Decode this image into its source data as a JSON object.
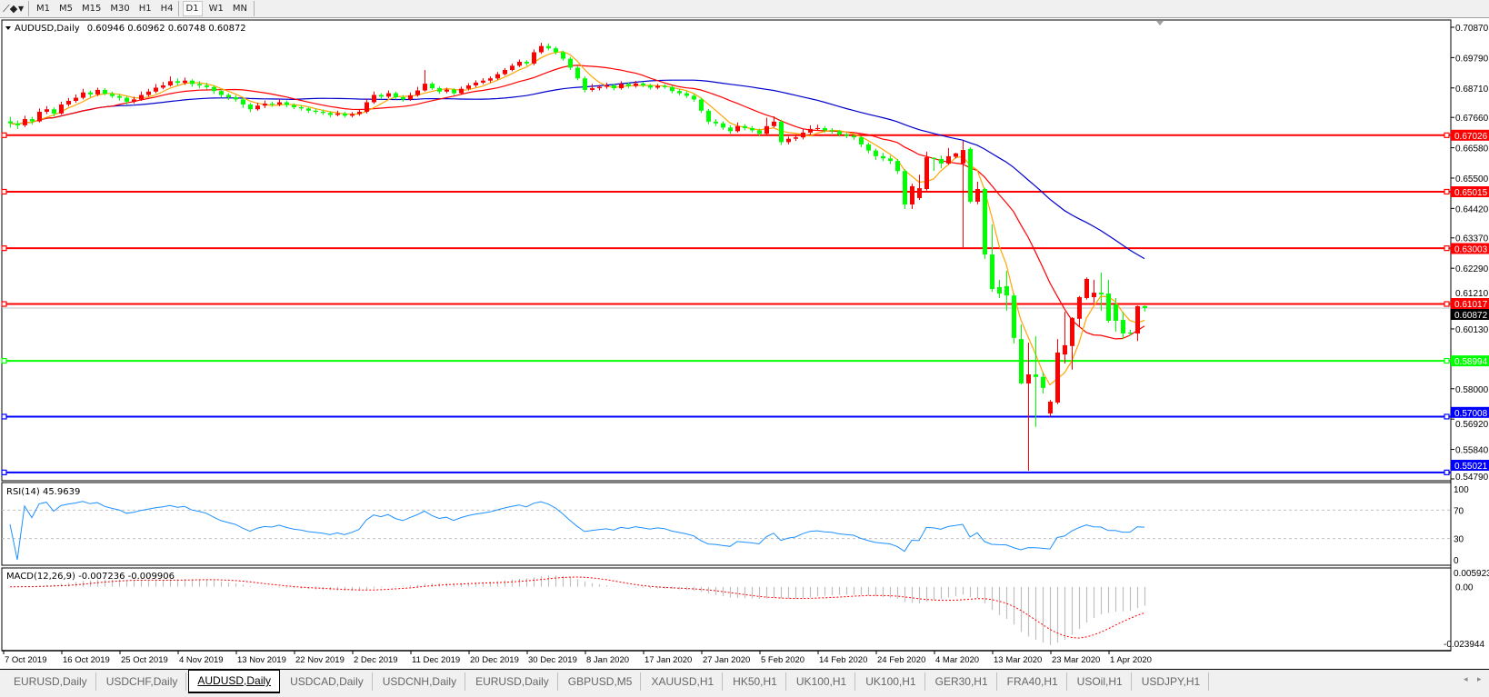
{
  "toolbar": {
    "tools_icon": "line-tools-icon",
    "timeframes": [
      "M1",
      "M5",
      "M15",
      "M30",
      "H1",
      "H4",
      "D1",
      "W1",
      "MN"
    ],
    "active_timeframe": "D1"
  },
  "chart": {
    "symbol_label": "AUDUSD,Daily",
    "ohlc_label": "0.60946 0.60962 0.60748 0.60872",
    "colors": {
      "bull": "#ff0000",
      "bear": "#00ff00",
      "ma_fast": "#ffa500",
      "ma_mid": "#ff0000",
      "ma_slow": "#0000cd",
      "rsi": "#1e90ff",
      "macd_hist": "#c0c0c0",
      "macd_signal": "#ff0000",
      "bid_line": "#c0c0c0"
    },
    "price_axis": [
      "0.70870",
      "0.69790",
      "0.68710",
      "0.67660",
      "0.66580",
      "0.65500",
      "0.64420",
      "0.63370",
      "0.62290",
      "0.61210",
      "0.60130",
      "0.58000",
      "0.56920",
      "0.55840",
      "0.54790"
    ],
    "price_range": [
      0.5479,
      0.7087
    ],
    "current_price": "0.60872",
    "hlines": [
      {
        "price": "0.67026",
        "color": "#ff0000"
      },
      {
        "price": "0.65015",
        "color": "#ff0000"
      },
      {
        "price": "0.63003",
        "color": "#ff0000"
      },
      {
        "price": "0.61017",
        "color": "#ff0000"
      },
      {
        "price": "0.58994",
        "color": "#00ff00"
      },
      {
        "price": "0.57008",
        "color": "#0000ff"
      },
      {
        "price": "0.55021",
        "color": "#0000ff"
      }
    ],
    "candles": [
      [
        0.6752,
        0.6768,
        0.673,
        0.6745
      ],
      [
        0.6745,
        0.6755,
        0.6725,
        0.6738
      ],
      [
        0.6738,
        0.6772,
        0.6732,
        0.676
      ],
      [
        0.676,
        0.6768,
        0.674,
        0.6752
      ],
      [
        0.6752,
        0.6798,
        0.6748,
        0.6786
      ],
      [
        0.6786,
        0.6806,
        0.6778,
        0.6795
      ],
      [
        0.6795,
        0.6802,
        0.677,
        0.678
      ],
      [
        0.678,
        0.6822,
        0.6775,
        0.6812
      ],
      [
        0.6812,
        0.6835,
        0.6805,
        0.6825
      ],
      [
        0.6825,
        0.6848,
        0.6818,
        0.6836
      ],
      [
        0.6836,
        0.6868,
        0.683,
        0.6855
      ],
      [
        0.6855,
        0.6862,
        0.6838,
        0.6848
      ],
      [
        0.6848,
        0.6872,
        0.6842,
        0.6864
      ],
      [
        0.6864,
        0.687,
        0.6845,
        0.685
      ],
      [
        0.685,
        0.6858,
        0.6835,
        0.6842
      ],
      [
        0.6842,
        0.685,
        0.6826,
        0.6836
      ],
      [
        0.6836,
        0.6842,
        0.6812,
        0.6822
      ],
      [
        0.6822,
        0.684,
        0.6815,
        0.683
      ],
      [
        0.683,
        0.6858,
        0.6825,
        0.6846
      ],
      [
        0.6846,
        0.6868,
        0.684,
        0.6858
      ],
      [
        0.6858,
        0.6885,
        0.6852,
        0.6872
      ],
      [
        0.6872,
        0.6892,
        0.6866,
        0.688
      ],
      [
        0.688,
        0.6912,
        0.6876,
        0.6895
      ],
      [
        0.6895,
        0.6905,
        0.688,
        0.6889
      ],
      [
        0.6889,
        0.6908,
        0.6882,
        0.6897
      ],
      [
        0.6897,
        0.6902,
        0.6875,
        0.6885
      ],
      [
        0.6885,
        0.6895,
        0.687,
        0.688
      ],
      [
        0.688,
        0.689,
        0.6866,
        0.6874
      ],
      [
        0.6874,
        0.688,
        0.685,
        0.686
      ],
      [
        0.686,
        0.6866,
        0.6838,
        0.6846
      ],
      [
        0.6846,
        0.6852,
        0.6828,
        0.6838
      ],
      [
        0.6838,
        0.6845,
        0.6822,
        0.683
      ],
      [
        0.683,
        0.6836,
        0.68,
        0.6812
      ],
      [
        0.6812,
        0.6818,
        0.6785,
        0.6795
      ],
      [
        0.6795,
        0.6818,
        0.679,
        0.6808
      ],
      [
        0.6808,
        0.6826,
        0.68,
        0.6815
      ],
      [
        0.6815,
        0.6822,
        0.6804,
        0.6812
      ],
      [
        0.6812,
        0.6832,
        0.6806,
        0.682
      ],
      [
        0.682,
        0.6826,
        0.6802,
        0.681
      ],
      [
        0.681,
        0.6816,
        0.6795,
        0.6802
      ],
      [
        0.6802,
        0.681,
        0.679,
        0.6798
      ],
      [
        0.6798,
        0.6804,
        0.6782,
        0.679
      ],
      [
        0.679,
        0.6798,
        0.6778,
        0.6786
      ],
      [
        0.6786,
        0.6794,
        0.6775,
        0.6782
      ],
      [
        0.6782,
        0.6788,
        0.6766,
        0.6775
      ],
      [
        0.6775,
        0.679,
        0.677,
        0.678
      ],
      [
        0.678,
        0.6786,
        0.6765,
        0.6772
      ],
      [
        0.6772,
        0.6785,
        0.6766,
        0.6778
      ],
      [
        0.6778,
        0.6795,
        0.6772,
        0.6786
      ],
      [
        0.6786,
        0.6832,
        0.678,
        0.682
      ],
      [
        0.682,
        0.6858,
        0.6815,
        0.6846
      ],
      [
        0.6846,
        0.6852,
        0.6832,
        0.684
      ],
      [
        0.684,
        0.6862,
        0.6835,
        0.6852
      ],
      [
        0.6852,
        0.6858,
        0.683,
        0.6838
      ],
      [
        0.6838,
        0.6845,
        0.6822,
        0.683
      ],
      [
        0.683,
        0.6855,
        0.6825,
        0.6845
      ],
      [
        0.6845,
        0.6875,
        0.684,
        0.6862
      ],
      [
        0.6862,
        0.6935,
        0.6858,
        0.6886
      ],
      [
        0.6886,
        0.6892,
        0.6864,
        0.687
      ],
      [
        0.687,
        0.6876,
        0.685,
        0.6858
      ],
      [
        0.6858,
        0.6872,
        0.6852,
        0.6865
      ],
      [
        0.6865,
        0.687,
        0.6845,
        0.6852
      ],
      [
        0.6852,
        0.6876,
        0.6848,
        0.6868
      ],
      [
        0.6868,
        0.6888,
        0.6862,
        0.688
      ],
      [
        0.688,
        0.6898,
        0.6874,
        0.689
      ],
      [
        0.689,
        0.6906,
        0.6884,
        0.6897
      ],
      [
        0.6897,
        0.6912,
        0.689,
        0.6905
      ],
      [
        0.6905,
        0.6928,
        0.69,
        0.692
      ],
      [
        0.692,
        0.6942,
        0.6915,
        0.6935
      ],
      [
        0.6935,
        0.6958,
        0.693,
        0.695
      ],
      [
        0.695,
        0.6972,
        0.6945,
        0.6964
      ],
      [
        0.6964,
        0.697,
        0.695,
        0.6958
      ],
      [
        0.6958,
        0.7008,
        0.6952,
        0.6998
      ],
      [
        0.6998,
        0.7032,
        0.6992,
        0.702
      ],
      [
        0.702,
        0.703,
        0.7005,
        0.7012
      ],
      [
        0.7012,
        0.7018,
        0.699,
        0.6998
      ],
      [
        0.6998,
        0.7004,
        0.6968,
        0.6975
      ],
      [
        0.6975,
        0.6982,
        0.6935,
        0.6943
      ],
      [
        0.6943,
        0.695,
        0.6898,
        0.6905
      ],
      [
        0.6905,
        0.6912,
        0.6855,
        0.6864
      ],
      [
        0.6864,
        0.6885,
        0.6858,
        0.687
      ],
      [
        0.687,
        0.6882,
        0.6862,
        0.6875
      ],
      [
        0.6875,
        0.689,
        0.6868,
        0.688
      ],
      [
        0.688,
        0.6886,
        0.6862,
        0.687
      ],
      [
        0.687,
        0.6895,
        0.6865,
        0.6885
      ],
      [
        0.6885,
        0.689,
        0.687,
        0.6878
      ],
      [
        0.6878,
        0.6896,
        0.6872,
        0.6887
      ],
      [
        0.6887,
        0.6892,
        0.6874,
        0.688
      ],
      [
        0.688,
        0.6886,
        0.6865,
        0.6872
      ],
      [
        0.6872,
        0.6885,
        0.6866,
        0.6878
      ],
      [
        0.6878,
        0.6884,
        0.6868,
        0.6874
      ],
      [
        0.6874,
        0.688,
        0.6852,
        0.686
      ],
      [
        0.686,
        0.6866,
        0.6845,
        0.6852
      ],
      [
        0.6852,
        0.686,
        0.6835,
        0.6843
      ],
      [
        0.6843,
        0.685,
        0.6822,
        0.683
      ],
      [
        0.683,
        0.6836,
        0.6782,
        0.679
      ],
      [
        0.679,
        0.6796,
        0.6742,
        0.6751
      ],
      [
        0.6751,
        0.676,
        0.6735,
        0.6745
      ],
      [
        0.6745,
        0.6752,
        0.6722,
        0.673
      ],
      [
        0.673,
        0.6738,
        0.6708,
        0.6717
      ],
      [
        0.6717,
        0.6748,
        0.6712,
        0.6735
      ],
      [
        0.6735,
        0.6742,
        0.672,
        0.6728
      ],
      [
        0.6728,
        0.6735,
        0.6712,
        0.672
      ],
      [
        0.672,
        0.6726,
        0.67,
        0.6708
      ],
      [
        0.6708,
        0.6765,
        0.6702,
        0.6735
      ],
      [
        0.6735,
        0.677,
        0.673,
        0.6751
      ],
      [
        0.6751,
        0.6758,
        0.6668,
        0.6678
      ],
      [
        0.6678,
        0.6698,
        0.667,
        0.669
      ],
      [
        0.669,
        0.6702,
        0.6682,
        0.6695
      ],
      [
        0.6695,
        0.6725,
        0.6688,
        0.6712
      ],
      [
        0.6712,
        0.6738,
        0.6705,
        0.6725
      ],
      [
        0.6725,
        0.674,
        0.6718,
        0.6728
      ],
      [
        0.6728,
        0.6735,
        0.6712,
        0.672
      ],
      [
        0.672,
        0.6728,
        0.6708,
        0.6717
      ],
      [
        0.6717,
        0.6722,
        0.6698,
        0.6705
      ],
      [
        0.6705,
        0.6712,
        0.6692,
        0.67
      ],
      [
        0.67,
        0.6706,
        0.6686,
        0.6695
      ],
      [
        0.6695,
        0.67,
        0.666,
        0.667
      ],
      [
        0.667,
        0.6676,
        0.6638,
        0.6648
      ],
      [
        0.6648,
        0.6655,
        0.6615,
        0.6628
      ],
      [
        0.6628,
        0.664,
        0.661,
        0.662
      ],
      [
        0.662,
        0.663,
        0.66,
        0.6611
      ],
      [
        0.6611,
        0.6618,
        0.6565,
        0.6575
      ],
      [
        0.6575,
        0.6582,
        0.644,
        0.6456
      ],
      [
        0.6456,
        0.653,
        0.644,
        0.6521
      ],
      [
        0.6479,
        0.6562,
        0.6472,
        0.6514
      ],
      [
        0.6511,
        0.6644,
        0.6505,
        0.6624
      ],
      [
        0.6622,
        0.6624,
        0.6576,
        0.6618
      ],
      [
        0.6618,
        0.663,
        0.6585,
        0.6602
      ],
      [
        0.6602,
        0.6657,
        0.6598,
        0.6628
      ],
      [
        0.6626,
        0.664,
        0.662,
        0.6638
      ],
      [
        0.6602,
        0.6683,
        0.6304,
        0.665
      ],
      [
        0.6654,
        0.666,
        0.646,
        0.6466
      ],
      [
        0.6466,
        0.6537,
        0.6457,
        0.6511
      ],
      [
        0.6511,
        0.6515,
        0.6262,
        0.6278
      ],
      [
        0.6278,
        0.6385,
        0.6145,
        0.6155
      ],
      [
        0.6162,
        0.6188,
        0.6123,
        0.6139
      ],
      [
        0.6165,
        0.622,
        0.6078,
        0.6132
      ],
      [
        0.6132,
        0.614,
        0.5961,
        0.5981
      ],
      [
        0.5977,
        0.6029,
        0.5816,
        0.5819
      ],
      [
        0.5819,
        0.5964,
        0.5508,
        0.5851
      ],
      [
        0.5851,
        0.5987,
        0.5664,
        0.5842
      ],
      [
        0.5842,
        0.5858,
        0.5783,
        0.5803
      ],
      [
        0.5712,
        0.576,
        0.5702,
        0.5754
      ],
      [
        0.5751,
        0.5977,
        0.5745,
        0.5929
      ],
      [
        0.5922,
        0.6074,
        0.589,
        0.5955
      ],
      [
        0.5952,
        0.6055,
        0.5868,
        0.6052
      ],
      [
        0.6049,
        0.613,
        0.602,
        0.6126
      ],
      [
        0.6123,
        0.6196,
        0.6118,
        0.6191
      ],
      [
        0.6126,
        0.6188,
        0.6107,
        0.6142
      ],
      [
        0.6142,
        0.6214,
        0.6078,
        0.6136
      ],
      [
        0.6139,
        0.6188,
        0.6035,
        0.6042
      ],
      [
        0.61,
        0.6123,
        0.6003,
        0.6042
      ],
      [
        0.6045,
        0.6074,
        0.5977,
        0.5997
      ],
      [
        0.6,
        0.601,
        0.599,
        0.5997
      ],
      [
        0.5997,
        0.6096,
        0.597,
        0.6094
      ],
      [
        0.60946,
        0.60962,
        0.60748,
        0.60872
      ]
    ],
    "date_axis": [
      "7 Oct 2019",
      "16 Oct 2019",
      "25 Oct 2019",
      "4 Nov 2019",
      "13 Nov 2019",
      "22 Nov 2019",
      "2 Dec 2019",
      "11 Dec 2019",
      "20 Dec 2019",
      "30 Dec 2019",
      "8 Jan 2020",
      "17 Jan 2020",
      "27 Jan 2020",
      "5 Feb 2020",
      "14 Feb 2020",
      "24 Feb 2020",
      "4 Mar 2020",
      "13 Mar 2020",
      "23 Mar 2020",
      "1 Apr 2020"
    ]
  },
  "rsi": {
    "label": "RSI(14) 45.9639",
    "axis": [
      "100",
      "70",
      "30",
      "0"
    ],
    "levels": [
      70,
      30
    ]
  },
  "macd": {
    "label": "MACD(12,26,9) -0.007236 -0.009906",
    "axis_top": "0.005923",
    "axis_zero": "0.00",
    "axis_bottom": "-0.023944"
  },
  "tabs": {
    "items": [
      "EURUSD,Daily",
      "USDCHF,Daily",
      "AUDUSD,Daily",
      "USDCAD,Daily",
      "USDCNH,Daily",
      "EURUSD,Daily",
      "GBPUSD,M5",
      "XAUUSD,H1",
      "HK50,H1",
      "UK100,H1",
      "UK100,H1",
      "GER30,H1",
      "FRA40,H1",
      "USOil,H1",
      "USDJPY,H1"
    ],
    "active": "AUDUSD,Daily",
    "scroll_left": "◂",
    "scroll_right": "▸"
  }
}
